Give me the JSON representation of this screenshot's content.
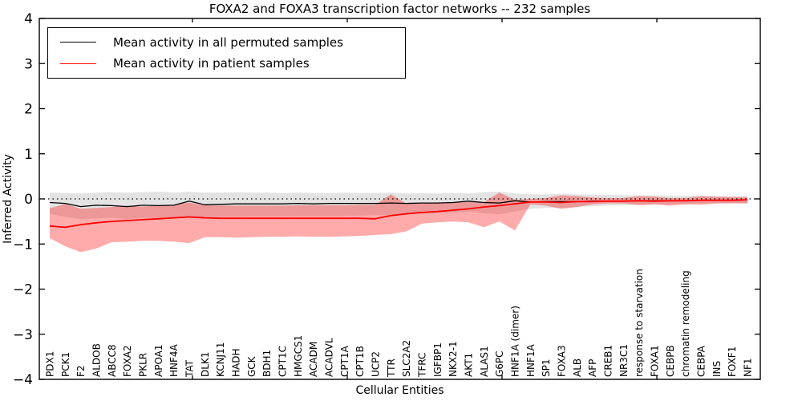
{
  "chart_data": {
    "type": "line",
    "title": "FOXA2 and FOXA3 transcription factor networks -- 232 samples",
    "xlabel": "Cellular Entities",
    "ylabel": "Inferred Activity",
    "ylim": [
      -4,
      4
    ],
    "y_ticks": [
      4,
      3,
      2,
      1,
      0,
      -1,
      -2,
      -3,
      -4
    ],
    "zero_line": "dotted",
    "grid": false,
    "legend_position": "upper left",
    "categories": [
      "PDX1",
      "PCK1",
      "F2",
      "ALDOB",
      "ABCC8",
      "FOXA2",
      "PKLR",
      "APOA1",
      "HNF4A",
      "TAT",
      "DLK1",
      "KCNJ11",
      "HADH",
      "GCK",
      "BDH1",
      "CPT1C",
      "HMGCS1",
      "ACADM",
      "ACADVL",
      "CPT1A",
      "CPT1B",
      "UCP2",
      "TTR",
      "SLC2A2",
      "TFRC",
      "IGFBP1",
      "NKX2-1",
      "AKT1",
      "ALAS1",
      "G6PC",
      "HNF1A (dimer)",
      "HNF1A",
      "SP1",
      "FOXA3",
      "ALB",
      "AFP",
      "CREB1",
      "NR3C1",
      "response to starvation",
      "FOXA1",
      "CEBPB",
      "chromatin remodeling",
      "CEBPA",
      "INS",
      "FOXF1",
      "NF1"
    ],
    "series": [
      {
        "name": "Mean activity in all permuted samples",
        "color": "#000000",
        "line_width": 1.3,
        "band_color": "#e2e2e2",
        "band_opacity": 0.95,
        "values": [
          -0.08,
          -0.1,
          -0.17,
          -0.14,
          -0.15,
          -0.17,
          -0.14,
          -0.15,
          -0.14,
          -0.05,
          -0.13,
          -0.12,
          -0.11,
          -0.11,
          -0.11,
          -0.11,
          -0.1,
          -0.11,
          -0.1,
          -0.1,
          -0.1,
          -0.1,
          -0.09,
          -0.1,
          -0.09,
          -0.09,
          -0.08,
          -0.05,
          -0.08,
          -0.09,
          -0.04,
          -0.07,
          -0.06,
          -0.06,
          -0.06,
          -0.05,
          -0.05,
          -0.05,
          -0.04,
          -0.04,
          -0.04,
          -0.04,
          -0.03,
          -0.03,
          -0.03,
          -0.02
        ],
        "band_upper": [
          0.14,
          0.13,
          0.12,
          0.14,
          0.15,
          0.14,
          0.15,
          0.16,
          0.14,
          0.16,
          0.14,
          0.14,
          0.15,
          0.14,
          0.14,
          0.13,
          0.14,
          0.13,
          0.13,
          0.14,
          0.13,
          0.13,
          0.14,
          0.12,
          0.13,
          0.12,
          0.13,
          0.12,
          0.15,
          0.16,
          0.12,
          0.1,
          0.1,
          0.11,
          0.1,
          0.09,
          0.09,
          0.08,
          0.08,
          0.08,
          0.07,
          0.07,
          0.07,
          0.06,
          0.06,
          0.06
        ],
        "band_lower": [
          -0.33,
          -0.4,
          -0.45,
          -0.43,
          -0.42,
          -0.44,
          -0.42,
          -0.42,
          -0.42,
          -0.4,
          -0.4,
          -0.4,
          -0.4,
          -0.39,
          -0.39,
          -0.39,
          -0.38,
          -0.38,
          -0.38,
          -0.38,
          -0.37,
          -0.36,
          -0.35,
          -0.34,
          -0.33,
          -0.31,
          -0.3,
          -0.28,
          -0.32,
          -0.34,
          -0.28,
          -0.22,
          -0.2,
          -0.2,
          -0.18,
          -0.16,
          -0.15,
          -0.14,
          -0.13,
          -0.13,
          -0.12,
          -0.11,
          -0.1,
          -0.1,
          -0.09,
          -0.09
        ]
      },
      {
        "name": "Mean activity in patient samples",
        "color": "#ff0000",
        "line_width": 1.8,
        "band_color": "#ff0000",
        "band_opacity": 0.33,
        "values": [
          -0.6,
          -0.63,
          -0.57,
          -0.53,
          -0.5,
          -0.48,
          -0.46,
          -0.44,
          -0.42,
          -0.4,
          -0.42,
          -0.43,
          -0.43,
          -0.43,
          -0.43,
          -0.43,
          -0.43,
          -0.43,
          -0.43,
          -0.43,
          -0.43,
          -0.44,
          -0.37,
          -0.33,
          -0.3,
          -0.28,
          -0.25,
          -0.22,
          -0.18,
          -0.15,
          -0.11,
          -0.07,
          -0.07,
          -0.08,
          -0.06,
          -0.06,
          -0.05,
          -0.05,
          -0.04,
          -0.05,
          -0.04,
          -0.04,
          -0.03,
          -0.03,
          -0.03,
          -0.02
        ],
        "band_upper": [
          -0.21,
          -0.11,
          -0.22,
          -0.2,
          -0.18,
          -0.15,
          -0.17,
          -0.15,
          -0.13,
          -0.08,
          -0.14,
          -0.15,
          -0.15,
          -0.15,
          -0.15,
          -0.15,
          -0.14,
          -0.14,
          -0.14,
          -0.14,
          -0.13,
          -0.13,
          0.1,
          -0.1,
          -0.1,
          -0.09,
          -0.08,
          -0.07,
          -0.07,
          0.14,
          -0.02,
          0.0,
          0.02,
          0.08,
          0.06,
          0.03,
          0.02,
          0.02,
          0.06,
          0.05,
          0.02,
          0.02,
          0.06,
          0.05,
          0.04,
          0.04
        ],
        "band_lower": [
          -0.87,
          -1.05,
          -1.18,
          -1.1,
          -0.96,
          -0.95,
          -0.93,
          -0.93,
          -0.95,
          -0.98,
          -0.85,
          -0.85,
          -0.86,
          -0.85,
          -0.84,
          -0.84,
          -0.83,
          -0.84,
          -0.84,
          -0.83,
          -0.82,
          -0.8,
          -0.78,
          -0.72,
          -0.55,
          -0.52,
          -0.5,
          -0.52,
          -0.63,
          -0.5,
          -0.7,
          -0.12,
          -0.15,
          -0.22,
          -0.18,
          -0.12,
          -0.1,
          -0.1,
          -0.14,
          -0.12,
          -0.15,
          -0.12,
          -0.13,
          -0.1,
          -0.1,
          -0.1
        ]
      }
    ]
  }
}
